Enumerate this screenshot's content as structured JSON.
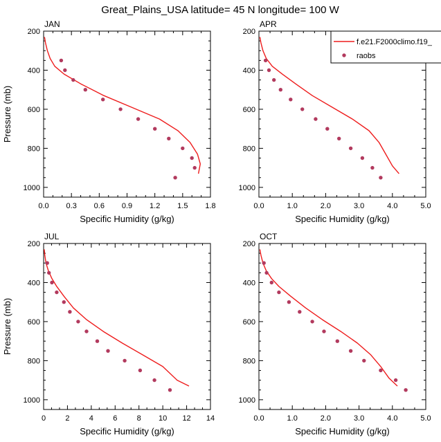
{
  "figure_title": "Great_Plains_USA  latitude= 45 N longitude= 100 W",
  "legend": {
    "model_label": "f.e21.F2000climo.f19_",
    "obs_label": "raobs"
  },
  "colors": {
    "model": "#ee1c1c",
    "obs": "#b23a5e",
    "axis": "#000000"
  },
  "chart_data": [
    {
      "type": "line",
      "title": "JAN",
      "xlabel": "Specific Humidity (g/kg)",
      "ylabel": "Pressure (mb)",
      "xlim": [
        0,
        1.8
      ],
      "ylim": [
        200,
        1050
      ],
      "xticks": [
        0.0,
        0.3,
        0.6,
        0.9,
        1.2,
        1.5,
        1.8
      ],
      "xtick_labels": [
        "0.0",
        "0.3",
        "0.6",
        "0.9",
        "1.2",
        "1.5",
        "1.8"
      ],
      "yticks": [
        200,
        400,
        600,
        800,
        1000
      ],
      "ytick_labels": [
        "200",
        "400",
        "600",
        "800",
        "1000"
      ],
      "series": [
        {
          "name": "f.e21.F2000climo.f19_",
          "kind": "line",
          "x": [
            0.01,
            0.02,
            0.04,
            0.07,
            0.12,
            0.22,
            0.4,
            0.65,
            0.95,
            1.25,
            1.45,
            1.58,
            1.66,
            1.69,
            1.67
          ],
          "y": [
            230,
            260,
            300,
            340,
            380,
            420,
            470,
            530,
            590,
            650,
            710,
            770,
            830,
            880,
            930
          ]
        },
        {
          "name": "raobs",
          "kind": "scatter",
          "x": [
            0.19,
            0.23,
            0.32,
            0.45,
            0.64,
            0.83,
            1.02,
            1.2,
            1.35,
            1.5,
            1.6,
            1.63,
            1.42
          ],
          "y": [
            350,
            400,
            450,
            500,
            550,
            600,
            650,
            700,
            750,
            800,
            850,
            900,
            950
          ]
        }
      ]
    },
    {
      "type": "line",
      "title": "APR",
      "xlabel": "Specific Humidity (g/kg)",
      "ylabel": "",
      "xlim": [
        0,
        5.0
      ],
      "ylim": [
        200,
        1050
      ],
      "xticks": [
        0.0,
        1.0,
        2.0,
        3.0,
        4.0,
        5.0
      ],
      "xtick_labels": [
        "0.0",
        "1.0",
        "2.0",
        "3.0",
        "4.0",
        "5.0"
      ],
      "yticks": [
        200,
        400,
        600,
        800,
        1000
      ],
      "ytick_labels": [
        "200",
        "400",
        "600",
        "800",
        "1000"
      ],
      "series": [
        {
          "name": "f.e21.F2000climo.f19_",
          "kind": "line",
          "x": [
            0.03,
            0.06,
            0.12,
            0.22,
            0.4,
            0.7,
            1.1,
            1.6,
            2.2,
            2.8,
            3.3,
            3.6,
            3.8,
            4.0,
            4.2
          ],
          "y": [
            230,
            260,
            300,
            340,
            380,
            420,
            470,
            530,
            590,
            650,
            710,
            770,
            830,
            890,
            930
          ]
        },
        {
          "name": "raobs",
          "kind": "scatter",
          "x": [
            0.2,
            0.3,
            0.45,
            0.65,
            0.95,
            1.3,
            1.7,
            2.05,
            2.4,
            2.75,
            3.1,
            3.4,
            3.65
          ],
          "y": [
            350,
            400,
            450,
            500,
            550,
            600,
            650,
            700,
            750,
            800,
            850,
            900,
            950
          ]
        }
      ]
    },
    {
      "type": "line",
      "title": "JUL",
      "xlabel": "Specific Humidity (g/kg)",
      "ylabel": "Pressure (mb)",
      "xlim": [
        0,
        14
      ],
      "ylim": [
        200,
        1050
      ],
      "xticks": [
        0,
        2,
        4,
        6,
        8,
        10,
        12,
        14
      ],
      "xtick_labels": [
        "0",
        "2",
        "4",
        "6",
        "8",
        "10",
        "12",
        "14"
      ],
      "yticks": [
        200,
        400,
        600,
        800,
        1000
      ],
      "ytick_labels": [
        "200",
        "400",
        "600",
        "800",
        "1000"
      ],
      "series": [
        {
          "name": "f.e21.F2000climo.f19_",
          "kind": "line",
          "x": [
            0.05,
            0.1,
            0.2,
            0.4,
            0.7,
            1.1,
            1.7,
            2.5,
            3.6,
            5.0,
            6.6,
            8.3,
            10.0,
            11.2,
            12.2
          ],
          "y": [
            230,
            260,
            300,
            340,
            380,
            420,
            470,
            530,
            590,
            650,
            710,
            770,
            830,
            900,
            930
          ]
        },
        {
          "name": "raobs",
          "kind": "scatter",
          "x": [
            0.3,
            0.45,
            0.7,
            1.1,
            1.7,
            2.2,
            2.9,
            3.6,
            4.5,
            5.4,
            6.8,
            8.1,
            9.3,
            10.6
          ],
          "y": [
            300,
            350,
            400,
            450,
            500,
            550,
            600,
            650,
            700,
            750,
            800,
            850,
            900,
            950
          ]
        }
      ]
    },
    {
      "type": "line",
      "title": "OCT",
      "xlabel": "Specific Humidity (g/kg)",
      "ylabel": "",
      "xlim": [
        0,
        5.0
      ],
      "ylim": [
        200,
        1050
      ],
      "xticks": [
        0.0,
        1.0,
        2.0,
        3.0,
        4.0,
        5.0
      ],
      "xtick_labels": [
        "0.0",
        "1.0",
        "2.0",
        "3.0",
        "4.0",
        "5.0"
      ],
      "yticks": [
        200,
        400,
        600,
        800,
        1000
      ],
      "ytick_labels": [
        "200",
        "400",
        "600",
        "800",
        "1000"
      ],
      "series": [
        {
          "name": "f.e21.F2000climo.f19_",
          "kind": "line",
          "x": [
            0.03,
            0.06,
            0.12,
            0.22,
            0.38,
            0.6,
            0.95,
            1.4,
            1.9,
            2.45,
            2.95,
            3.35,
            3.65,
            3.9,
            4.15
          ],
          "y": [
            230,
            260,
            300,
            340,
            380,
            420,
            470,
            530,
            590,
            650,
            710,
            770,
            830,
            890,
            930
          ]
        },
        {
          "name": "raobs",
          "kind": "scatter",
          "x": [
            0.15,
            0.23,
            0.38,
            0.6,
            0.9,
            1.22,
            1.6,
            1.95,
            2.35,
            2.75,
            3.15,
            3.65,
            4.1,
            4.4
          ],
          "y": [
            300,
            350,
            400,
            450,
            500,
            550,
            600,
            650,
            700,
            750,
            800,
            850,
            900,
            950
          ]
        }
      ]
    }
  ]
}
